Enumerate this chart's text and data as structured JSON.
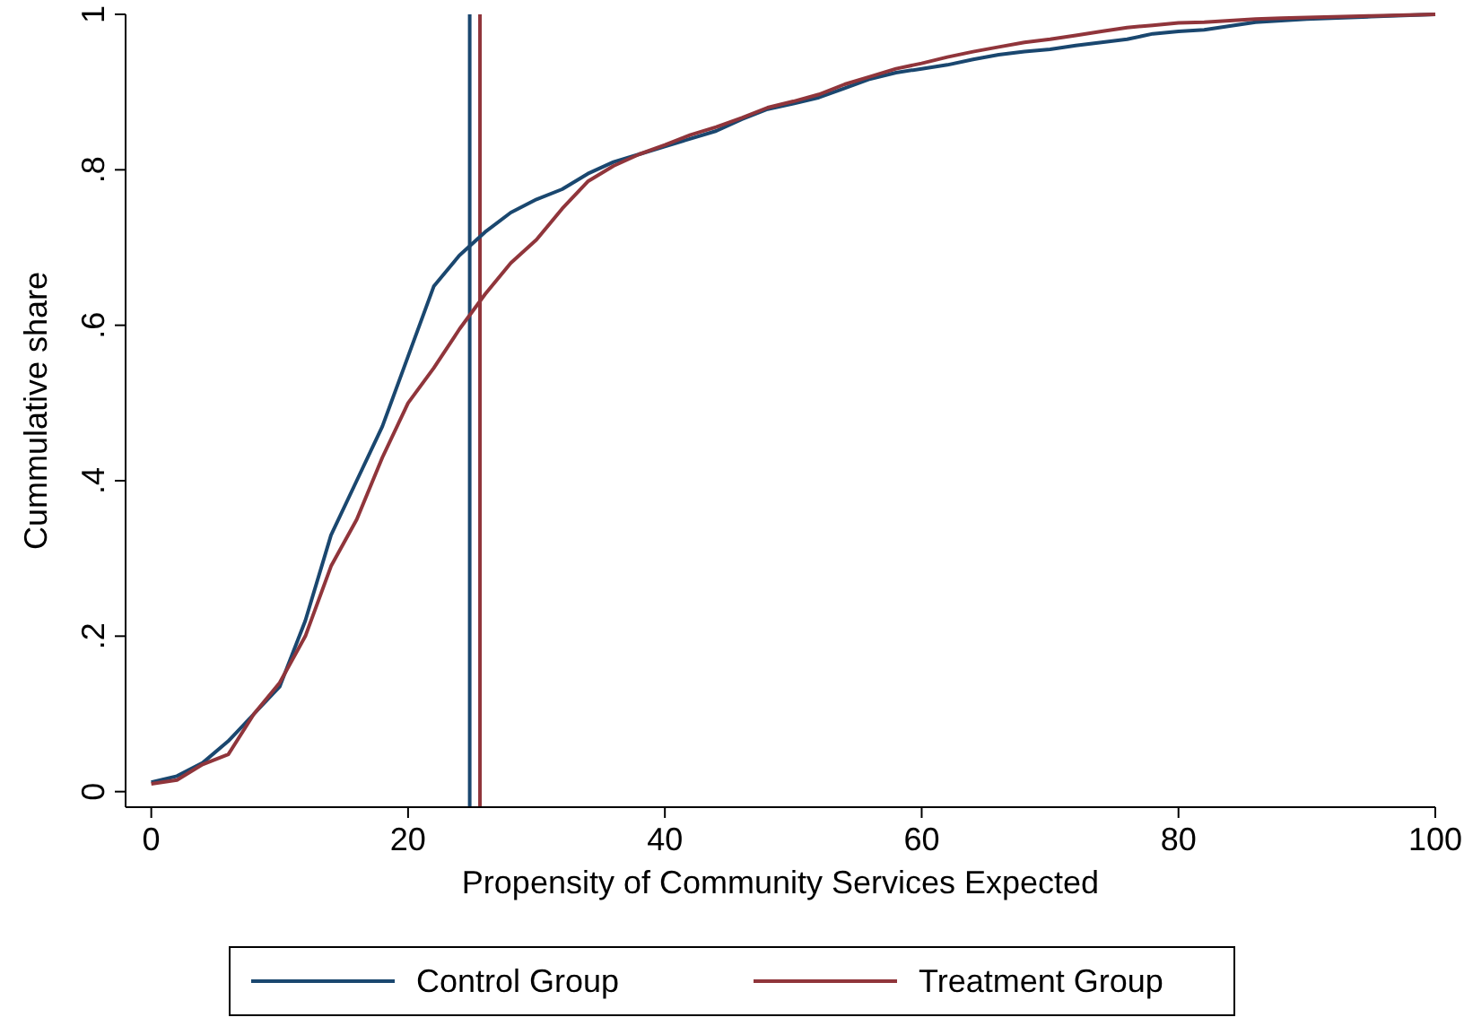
{
  "chart_data": {
    "type": "line",
    "xlabel": "Propensity of Community Services Expected",
    "ylabel": "Cummulative share",
    "x": [
      0,
      2,
      4,
      6,
      8,
      10,
      12,
      14,
      16,
      18,
      20,
      22,
      24,
      26,
      28,
      30,
      32,
      34,
      36,
      38,
      40,
      42,
      44,
      46,
      48,
      50,
      52,
      54,
      56,
      58,
      60,
      62,
      64,
      66,
      68,
      70,
      72,
      74,
      76,
      78,
      80,
      82,
      84,
      86,
      88,
      90,
      95,
      100
    ],
    "series": [
      {
        "name": "Control Group",
        "color": "#1a476f",
        "values": [
          0.012,
          0.02,
          0.037,
          0.065,
          0.1,
          0.135,
          0.22,
          0.33,
          0.4,
          0.47,
          0.56,
          0.65,
          0.69,
          0.72,
          0.745,
          0.762,
          0.775,
          0.795,
          0.81,
          0.82,
          0.83,
          0.84,
          0.85,
          0.865,
          0.878,
          0.885,
          0.893,
          0.905,
          0.917,
          0.925,
          0.93,
          0.935,
          0.942,
          0.948,
          0.952,
          0.955,
          0.96,
          0.964,
          0.968,
          0.975,
          0.978,
          0.98,
          0.985,
          0.99,
          0.992,
          0.994,
          0.997,
          1
        ]
      },
      {
        "name": "Treatment Group",
        "color": "#90353b",
        "values": [
          0.01,
          0.015,
          0.035,
          0.048,
          0.1,
          0.14,
          0.2,
          0.29,
          0.35,
          0.43,
          0.5,
          0.545,
          0.595,
          0.64,
          0.68,
          0.71,
          0.75,
          0.785,
          0.805,
          0.82,
          0.832,
          0.845,
          0.855,
          0.867,
          0.88,
          0.888,
          0.897,
          0.91,
          0.92,
          0.93,
          0.937,
          0.945,
          0.952,
          0.958,
          0.964,
          0.968,
          0.973,
          0.978,
          0.983,
          0.986,
          0.989,
          0.99,
          0.992,
          0.994,
          0.995,
          0.996,
          0.998,
          1
        ]
      }
    ],
    "ref_lines": [
      {
        "axis": "x",
        "value": 24.8,
        "color": "#1a476f"
      },
      {
        "axis": "x",
        "value": 25.6,
        "color": "#90353b"
      }
    ],
    "xlim": [
      -2,
      100
    ],
    "ylim": [
      -0.02,
      1
    ],
    "xticks": [
      0,
      20,
      40,
      60,
      80,
      100
    ],
    "yticks": [
      {
        "value": 0,
        "label": "0"
      },
      {
        "value": 0.2,
        "label": ".2"
      },
      {
        "value": 0.4,
        "label": ".4"
      },
      {
        "value": 0.6,
        "label": ".6"
      },
      {
        "value": 0.8,
        "label": ".8"
      },
      {
        "value": 1,
        "label": "1"
      }
    ],
    "grid": false,
    "legend": "bottom",
    "line_style": "solid",
    "marker": "none"
  }
}
